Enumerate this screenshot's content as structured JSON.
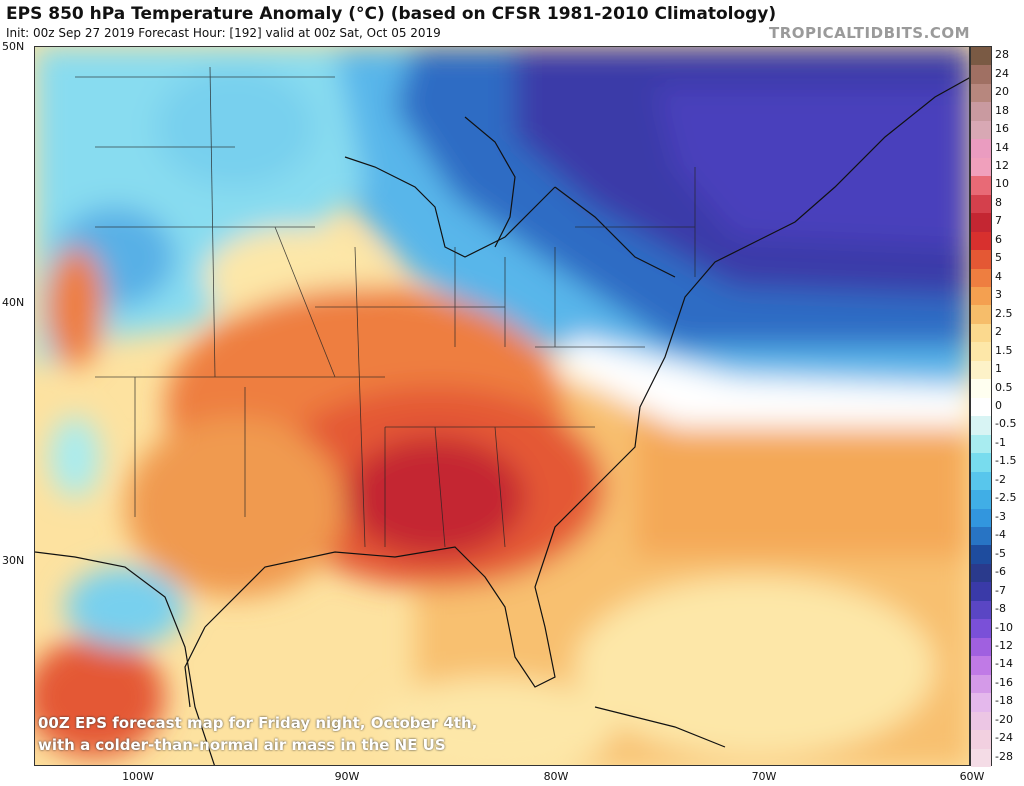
{
  "header": {
    "title": "EPS 850 hPa Temperature Anomaly (°C) (based on CFSR 1981-2010 Climatology)",
    "subtitle": "Init: 00z Sep 27 2019   Forecast Hour: [192]   valid at 00z Sat, Oct 05 2019",
    "brand": "TROPICALTIDBITS.COM"
  },
  "map": {
    "lat_labels": [
      "50N",
      "40N",
      "30N"
    ],
    "lon_labels": [
      "100W",
      "90W",
      "80W",
      "70W",
      "60W"
    ]
  },
  "colorbar": {
    "labels": [
      "28",
      "24",
      "20",
      "18",
      "16",
      "14",
      "12",
      "10",
      "8",
      "7",
      "6",
      "5",
      "4",
      "3",
      "2.5",
      "2",
      "1.5",
      "1",
      "0.5",
      "0",
      "-0.5",
      "-1",
      "-1.5",
      "-2",
      "-2.5",
      "-3",
      "-4",
      "-5",
      "-6",
      "-7",
      "-8",
      "-10",
      "-12",
      "-14",
      "-16",
      "-18",
      "-20",
      "-24",
      "-28"
    ],
    "colors": [
      "#7a5a44",
      "#a07063",
      "#b7877e",
      "#c99aa0",
      "#d8a8b4",
      "#ea9cc0",
      "#f0a0bc",
      "#e86a76",
      "#d4404c",
      "#c42632",
      "#d8302e",
      "#e45834",
      "#ee7e40",
      "#f4a050",
      "#f6bd6a",
      "#fbd98e",
      "#fde7a8",
      "#fdf2c8",
      "#fffff0",
      "#ffffff",
      "#d8f4f4",
      "#a8ecf0",
      "#78dcee",
      "#58c6ec",
      "#40aee6",
      "#3296de",
      "#2874c4",
      "#1e4c9e",
      "#2a3a8c",
      "#3a3aa8",
      "#5a46c4",
      "#7a50d8",
      "#a060e0",
      "#c07ae6",
      "#d49ae8",
      "#e4b8ec",
      "#ecc6e4",
      "#f2d0e0",
      "#f4dce6"
    ]
  },
  "caption": {
    "line1": "00Z EPS forecast map for Friday night, October 4th,",
    "line2": "with a colder-than-normal air mass in the NE US"
  }
}
